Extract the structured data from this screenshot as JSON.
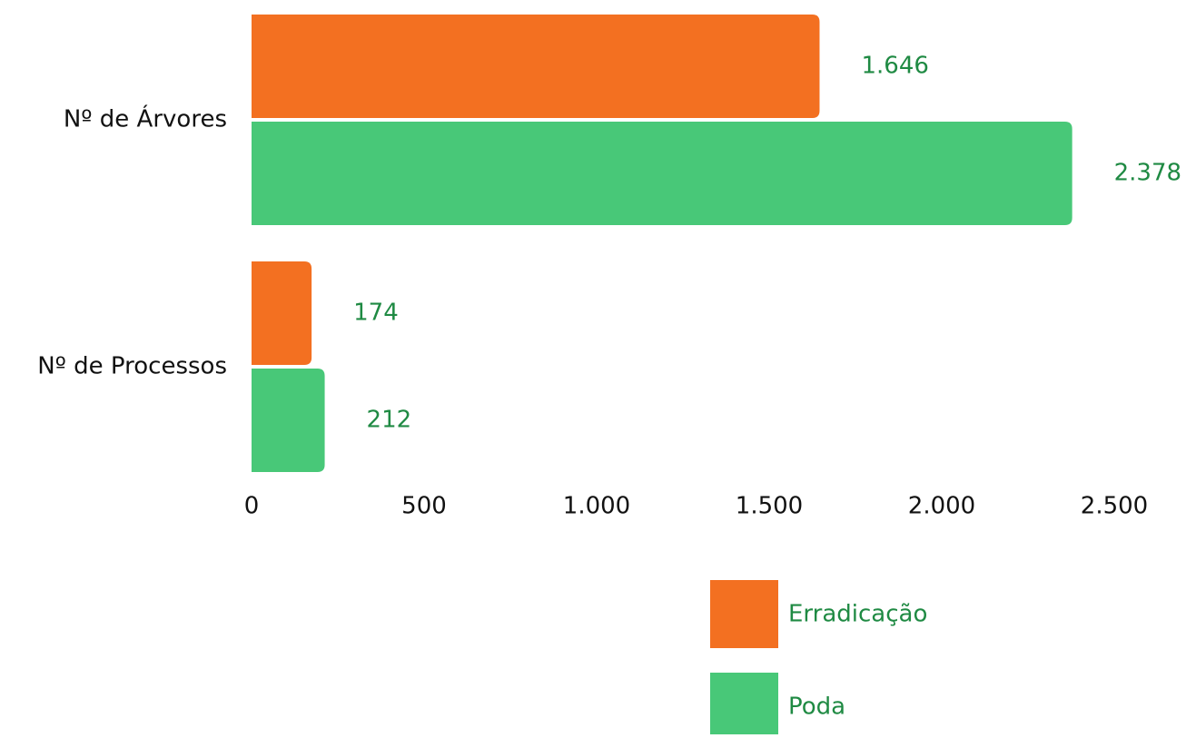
{
  "chart_data": {
    "type": "bar",
    "orientation": "horizontal",
    "categories": [
      "Nº de Árvores",
      "Nº de Processos"
    ],
    "series": [
      {
        "name": "Erradicação",
        "color": "#f37021",
        "values": [
          1646,
          174
        ],
        "value_labels": [
          "1.646",
          "174"
        ]
      },
      {
        "name": "Poda",
        "color": "#48c878",
        "values": [
          2378,
          212
        ],
        "value_labels": [
          "2.378",
          "212"
        ]
      }
    ],
    "xlim": [
      0,
      2500
    ],
    "xticks": [
      0,
      500,
      {
        "value": 1000,
        "label": "1.000"
      },
      {
        "value": 1500,
        "label": "1.500"
      },
      {
        "value": 2000,
        "label": "2.000"
      },
      {
        "value": 2500,
        "label": "2.500"
      }
    ],
    "legend": "bottom-right"
  }
}
